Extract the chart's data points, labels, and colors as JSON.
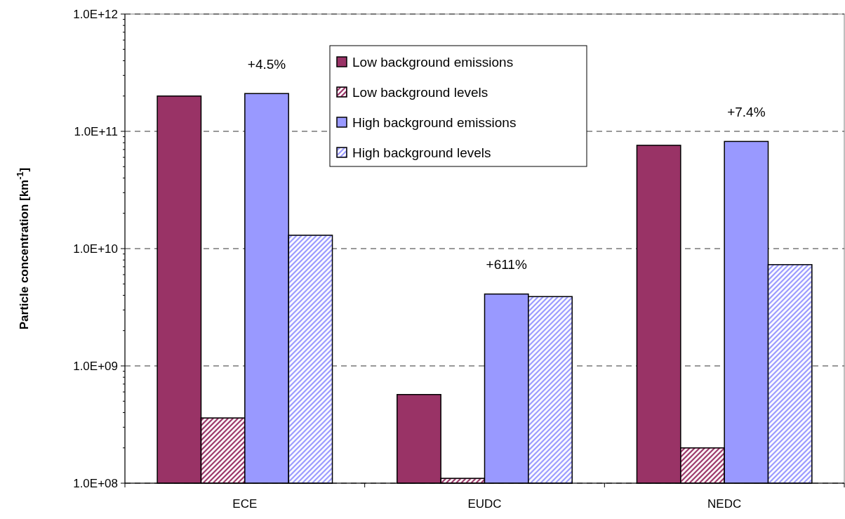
{
  "chart_data": {
    "type": "bar",
    "ylabel": "Particle concentration [km$^{-1}$]",
    "categories": [
      "ECE",
      "EUDC",
      "NEDC"
    ],
    "series": [
      {
        "name": "Low background emissions",
        "color": "#993366",
        "values": [
          200000000000.0,
          570000000.0,
          76000000000.0
        ]
      },
      {
        "name": "Low background levels",
        "color": "#993366",
        "values": [
          360000000.0,
          110000000.0,
          200000000.0
        ]
      },
      {
        "name": "High background emissions",
        "color": "#9999ff",
        "values": [
          210000000000.0,
          4100000000.0,
          82000000000.0
        ]
      },
      {
        "name": "High background levels",
        "color": "#9999ff",
        "values": [
          13000000000.0,
          3900000000.0,
          7300000000.0
        ]
      }
    ],
    "log": true,
    "ylim": [
      100000000.0,
      1000000000000.0
    ],
    "yticks": [
      {
        "value": 100000000.0,
        "label": "1.0E+08"
      },
      {
        "value": 1000000000.0,
        "label": "1.0E+09"
      },
      {
        "value": 10000000000.0,
        "label": "1.0E+10"
      },
      {
        "value": 100000000000.0,
        "label": "1.0E+11"
      },
      {
        "value": 1000000000000.0,
        "label": "1.0E+12"
      }
    ],
    "grid": "y",
    "legend": "top",
    "annotations": [
      "+4.5%",
      "+611%",
      "+7.4%"
    ]
  }
}
